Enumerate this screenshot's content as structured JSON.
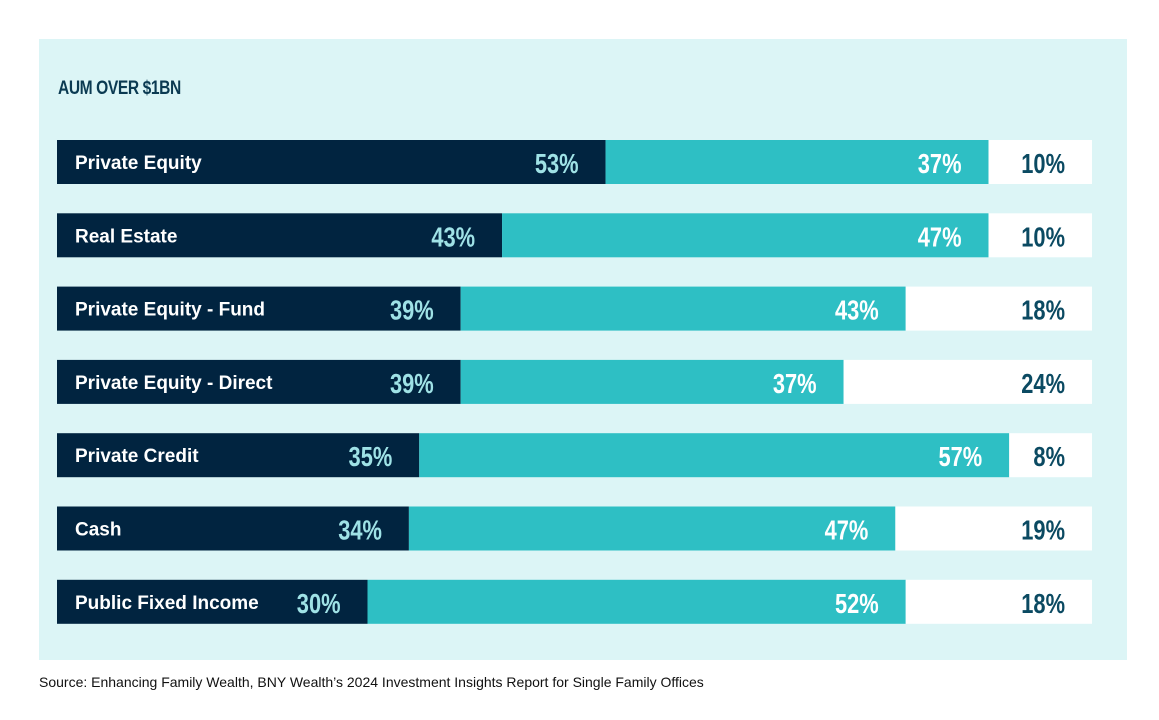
{
  "chart_data": {
    "type": "bar",
    "stacked": true,
    "orientation": "horizontal",
    "title": "AUM OVER $1BN",
    "categories": [
      "Private Equity",
      "Real Estate",
      "Private Equity - Fund",
      "Private Equity - Direct",
      "Private Credit",
      "Cash",
      "Public Fixed Income"
    ],
    "series": [
      {
        "values": [
          53,
          43,
          39,
          39,
          35,
          34,
          30
        ],
        "color": "#012440",
        "label_color": "#9fe2e6"
      },
      {
        "values": [
          37,
          47,
          43,
          37,
          57,
          47,
          52
        ],
        "color": "#2ebfc4",
        "label_color": "#ffffff"
      },
      {
        "values": [
          10,
          10,
          18,
          24,
          8,
          19,
          18
        ],
        "color": "#ffffff",
        "label_color": "#0b4a62"
      }
    ],
    "value_suffix": "%",
    "xlim": [
      0,
      100
    ]
  },
  "footer": {
    "source": "Source: Enhancing Family Wealth, BNY Wealth’s 2024 Investment Insights Report for Single Family Offices"
  }
}
